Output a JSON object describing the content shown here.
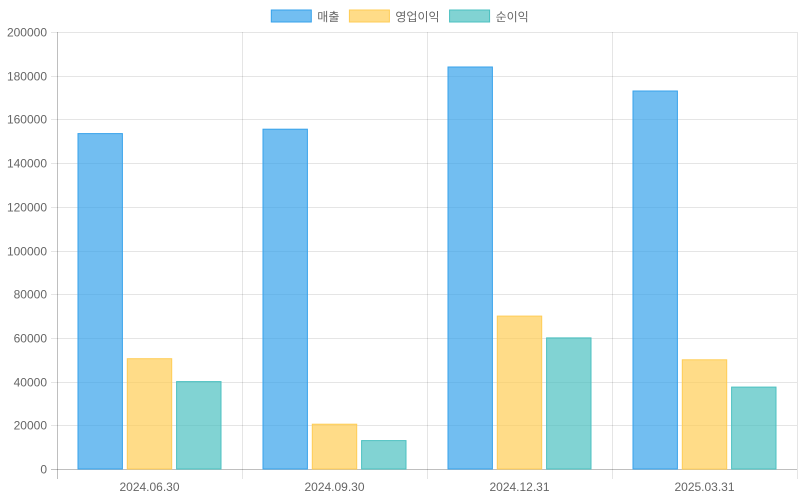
{
  "chart_data": {
    "type": "bar",
    "categories": [
      "2024.06.30",
      "2024.09.30",
      "2024.12.31",
      "2025.03.31"
    ],
    "series": [
      {
        "name": "매출",
        "values": [
          153500,
          155500,
          184000,
          173000
        ],
        "fill": "#36a2eb",
        "stroke": "#36a2eb"
      },
      {
        "name": "영업이익",
        "values": [
          50500,
          20500,
          70000,
          50000
        ],
        "fill": "#ffcd56",
        "stroke": "#ffcd56"
      },
      {
        "name": "순이익",
        "values": [
          40000,
          13000,
          60000,
          37500
        ],
        "fill": "#4bc0c0",
        "stroke": "#4bc0c0"
      }
    ],
    "ylim": [
      0,
      200000
    ],
    "yticks": [
      0,
      20000,
      40000,
      60000,
      80000,
      100000,
      120000,
      140000,
      160000,
      180000,
      200000
    ],
    "grid": true,
    "legend_position": "top-center",
    "title": "",
    "xlabel": "",
    "ylabel": ""
  }
}
